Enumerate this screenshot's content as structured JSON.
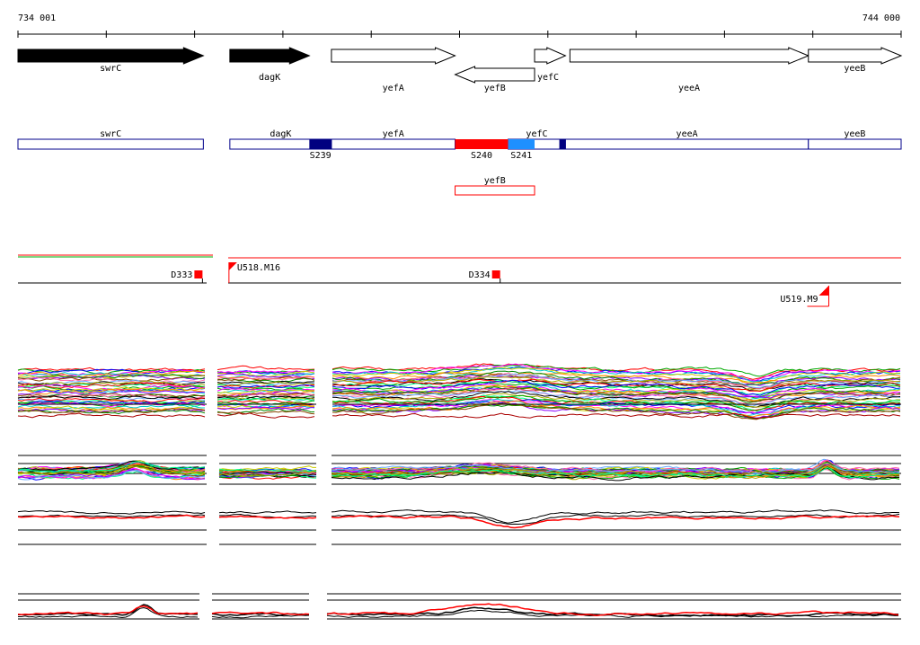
{
  "axis": {
    "start_label": "734 001",
    "end_label": "744 000",
    "start": 734001,
    "end": 744000
  },
  "genes_solid": [
    {
      "label": "swrC",
      "start": 734001,
      "end": 736100,
      "strand": "+"
    },
    {
      "label": "dagK",
      "start": 736400,
      "end": 737300,
      "strand": "+"
    }
  ],
  "genes_open": [
    {
      "label": "yefA",
      "start": 737550,
      "end": 738950,
      "strand": "+"
    },
    {
      "label": "yefB",
      "start": 738950,
      "end": 739850,
      "strand": "-"
    },
    {
      "label": "yefC",
      "start": 739850,
      "end": 740200,
      "strand": "+"
    },
    {
      "label": "yeeA",
      "start": 740250,
      "end": 742950,
      "strand": "+"
    },
    {
      "label": "yeeB",
      "start": 742950,
      "end": 744000,
      "strand": "+"
    }
  ],
  "segments": [
    {
      "label": "swrC",
      "start": 734001,
      "end": 736100
    },
    {
      "label": "dagK",
      "start": 736400,
      "end": 737550
    },
    {
      "label": "yefA",
      "start": 737550,
      "end": 738950
    },
    {
      "label": "yefC",
      "start": 739550,
      "end": 740200
    },
    {
      "label": "yeeA",
      "start": 740200,
      "end": 742950
    },
    {
      "label": "yeeB",
      "start": 742950,
      "end": 744000
    }
  ],
  "segments_extra": [
    {
      "label": "yefB",
      "start": 738950,
      "end": 739850
    }
  ],
  "regions": [
    {
      "label": "S239",
      "start": 737300,
      "end": 737550,
      "color": "#000080"
    },
    {
      "label": "S240",
      "start": 738950,
      "end": 739550,
      "color": "#ff0000"
    },
    {
      "label": "S241",
      "start": 739550,
      "end": 739850,
      "color": "#1e90ff"
    },
    {
      "label": "",
      "start": 740130,
      "end": 740200,
      "color": "#000080"
    }
  ],
  "features": [
    {
      "label": "D333",
      "pos": 736080
    },
    {
      "label": "U518.M16",
      "pos": 736400
    },
    {
      "label": "D334",
      "pos": 739450
    },
    {
      "label": "U519.M9",
      "pos": 743120
    }
  ],
  "colors": {
    "solid": "#000000",
    "segment": "#00008b",
    "accent": "#ff0000"
  }
}
